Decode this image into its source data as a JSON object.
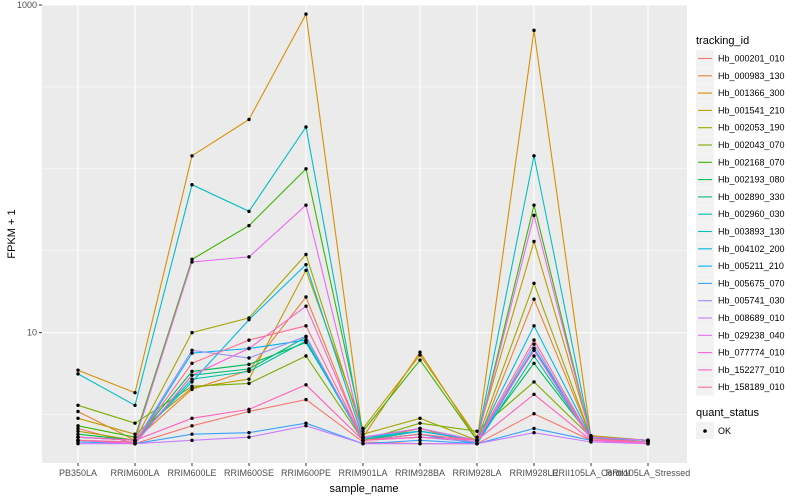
{
  "chart_data": {
    "type": "line",
    "xlabel": "sample_name",
    "ylabel": "FPKM + 1",
    "y_scale": "log10",
    "ylim": [
      1.6,
      1000
    ],
    "y_ticks": [
      10,
      1000
    ],
    "y_tick_labels": [
      "10",
      "1000"
    ],
    "grid": true,
    "legend_placement": "right",
    "categories": [
      "PB350LA",
      "RRIM600LA",
      "RRIM600LE",
      "RRIM600SE",
      "RRIM600PE",
      "RRIM901LA",
      "RRIM928BA",
      "RRIM928LA",
      "RRIM928LE",
      "RRII105LA_Control",
      "RRII105LA_Stressed"
    ],
    "color_legend_title": "tracking_id",
    "shape_legend_title": "quant_status",
    "shape_legend_label": "OK",
    "series": [
      {
        "name": "Hb_000201_010",
        "color": "#F8766D",
        "values": [
          2.6,
          2.1,
          2.7,
          3.3,
          3.9,
          2.15,
          2.1,
          2.1,
          3.2,
          2.2,
          2.1
        ]
      },
      {
        "name": "Hb_000983_130",
        "color": "#EA8331",
        "values": [
          3.3,
          2.2,
          4.5,
          5.9,
          16.5,
          2.2,
          2.6,
          2.1,
          16.0,
          2.3,
          2.2
        ]
      },
      {
        "name": "Hb_001366_300",
        "color": "#D89000",
        "values": [
          5.9,
          4.3,
          120,
          200,
          880,
          2.3,
          7.6,
          2.2,
          700,
          2.3,
          2.2
        ]
      },
      {
        "name": "Hb_001541_210",
        "color": "#C09B00",
        "values": [
          3.0,
          2.4,
          4.6,
          5.2,
          24.0,
          2.6,
          7.3,
          2.3,
          36.0,
          2.35,
          2.2
        ]
      },
      {
        "name": "Hb_002053_190",
        "color": "#A3A500",
        "values": [
          2.5,
          2.2,
          10.0,
          12.3,
          30.0,
          2.4,
          3.0,
          2.2,
          20.0,
          2.3,
          2.2
        ]
      },
      {
        "name": "Hb_002043_070",
        "color": "#7CAE00",
        "values": [
          3.6,
          2.8,
          4.7,
          4.9,
          7.2,
          2.2,
          2.8,
          2.5,
          5.0,
          2.3,
          2.2
        ]
      },
      {
        "name": "Hb_002168_070",
        "color": "#39B600",
        "values": [
          2.7,
          2.3,
          28.0,
          45.0,
          100,
          2.5,
          6.8,
          2.2,
          60.0,
          2.3,
          2.2
        ]
      },
      {
        "name": "Hb_002193_080",
        "color": "#00BB4E",
        "values": [
          2.4,
          2.2,
          5.8,
          6.4,
          8.7,
          2.3,
          2.6,
          2.2,
          6.5,
          2.3,
          2.2
        ]
      },
      {
        "name": "Hb_002890_330",
        "color": "#00BF7D",
        "values": [
          2.2,
          2.1,
          5.5,
          6.0,
          9.4,
          2.2,
          2.5,
          2.2,
          8.0,
          2.3,
          2.2
        ]
      },
      {
        "name": "Hb_002960_030",
        "color": "#00C1A3",
        "values": [
          2.3,
          2.2,
          5.2,
          5.8,
          8.9,
          2.2,
          2.4,
          2.1,
          7.2,
          2.25,
          2.2
        ]
      },
      {
        "name": "Hb_003893_130",
        "color": "#00BFC4",
        "values": [
          5.6,
          3.6,
          80.0,
          55.0,
          180,
          2.3,
          2.5,
          2.2,
          120,
          2.3,
          2.2
        ]
      },
      {
        "name": "Hb_004102_200",
        "color": "#00BAE0",
        "values": [
          2.3,
          2.2,
          5.0,
          12.0,
          26.0,
          2.25,
          2.5,
          2.2,
          11.0,
          2.3,
          2.2
        ]
      },
      {
        "name": "Hb_005211_210",
        "color": "#00B0F6",
        "values": [
          2.2,
          2.1,
          7.5,
          8.0,
          9.0,
          2.2,
          2.4,
          2.1,
          8.0,
          2.25,
          2.15
        ]
      },
      {
        "name": "Hb_005675_070",
        "color": "#35A2FF",
        "values": [
          2.15,
          2.1,
          2.4,
          2.45,
          2.8,
          2.1,
          2.2,
          2.1,
          2.6,
          2.2,
          2.1
        ]
      },
      {
        "name": "Hb_005741_030",
        "color": "#9590FF",
        "values": [
          2.2,
          2.15,
          7.8,
          7.0,
          9.5,
          2.2,
          2.3,
          2.15,
          8.5,
          2.2,
          2.15
        ]
      },
      {
        "name": "Hb_008689_010",
        "color": "#C77CFF",
        "values": [
          2.1,
          2.1,
          2.2,
          2.3,
          2.7,
          2.1,
          2.1,
          2.1,
          2.45,
          2.15,
          2.1
        ]
      },
      {
        "name": "Hb_029238_040",
        "color": "#E76BF3",
        "values": [
          2.3,
          2.2,
          27.0,
          29.0,
          60.0,
          2.3,
          2.6,
          2.2,
          52.0,
          2.3,
          2.2
        ]
      },
      {
        "name": "Hb_077774_010",
        "color": "#FA62DB",
        "values": [
          2.2,
          2.1,
          5.5,
          8.0,
          14.5,
          2.2,
          2.3,
          2.2,
          7.8,
          2.2,
          2.1
        ]
      },
      {
        "name": "Hb_152277_010",
        "color": "#FF62BC",
        "values": [
          2.3,
          2.2,
          3.0,
          3.4,
          4.8,
          2.2,
          2.3,
          2.2,
          4.2,
          2.2,
          2.15
        ]
      },
      {
        "name": "Hb_158189_010",
        "color": "#FF6C91",
        "values": [
          2.2,
          2.15,
          6.5,
          9.0,
          11.0,
          2.2,
          2.4,
          2.2,
          9.0,
          2.25,
          2.15
        ]
      }
    ]
  }
}
